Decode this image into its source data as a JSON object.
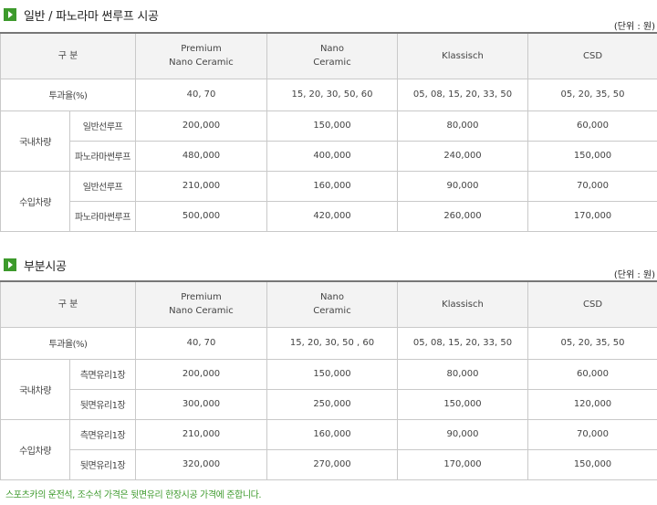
{
  "section1": {
    "title": "일반 / 파노라마 썬루프 시공",
    "unit": "(단위 : 원)",
    "header": {
      "division": "구 분",
      "premium_line1": "Premium",
      "premium_line2": "Nano Ceramic",
      "nano_line1": "Nano",
      "nano_line2": "Ceramic",
      "klassisch": "Klassisch",
      "csd": "CSD"
    },
    "transmittance": {
      "label": "투과율(%)",
      "premium": "40, 70",
      "nano": "15, 20, 30, 50, 60",
      "klassisch": "05, 08, 15, 20, 33, 50",
      "csd": "05, 20, 35, 50"
    },
    "domestic": {
      "label": "국내차량",
      "rows": [
        {
          "name": "일반선루프",
          "premium": "200,000",
          "nano": "150,000",
          "klassisch": "80,000",
          "csd": "60,000"
        },
        {
          "name": "파노라마썬루프",
          "premium": "480,000",
          "nano": "400,000",
          "klassisch": "240,000",
          "csd": "150,000"
        }
      ]
    },
    "imported": {
      "label": "수입차량",
      "rows": [
        {
          "name": "일반선루프",
          "premium": "210,000",
          "nano": "160,000",
          "klassisch": "90,000",
          "csd": "70,000"
        },
        {
          "name": "파노라마썬루프",
          "premium": "500,000",
          "nano": "420,000",
          "klassisch": "260,000",
          "csd": "170,000"
        }
      ]
    }
  },
  "section2": {
    "title": "부분시공",
    "unit": "(단위 : 원)",
    "header": {
      "division": "구 분",
      "premium_line1": "Premium",
      "premium_line2": "Nano Ceramic",
      "nano_line1": "Nano",
      "nano_line2": "Ceramic",
      "klassisch": "Klassisch",
      "csd": "CSD"
    },
    "transmittance": {
      "label": "투과율(%)",
      "premium": "40, 70",
      "nano": "15, 20, 30, 50 , 60",
      "klassisch": "05, 08, 15, 20, 33, 50",
      "csd": "05, 20, 35, 50"
    },
    "domestic": {
      "label": "국내차량",
      "rows": [
        {
          "name": "측면유리1장",
          "premium": "200,000",
          "nano": "150,000",
          "klassisch": "80,000",
          "csd": "60,000"
        },
        {
          "name": "뒷면유리1장",
          "premium": "300,000",
          "nano": "250,000",
          "klassisch": "150,000",
          "csd": "120,000"
        }
      ]
    },
    "imported": {
      "label": "수입차량",
      "rows": [
        {
          "name": "측면유리1장",
          "premium": "210,000",
          "nano": "160,000",
          "klassisch": "90,000",
          "csd": "70,000"
        },
        {
          "name": "뒷면유리1장",
          "premium": "320,000",
          "nano": "270,000",
          "klassisch": "170,000",
          "csd": "150,000"
        }
      ]
    }
  },
  "footnote": "스포츠카의 운전석, 조수석 가격은 뒷면유리 한장시공 가격에 준합니다.",
  "colors": {
    "accent": "#3d9a2c",
    "header_bg": "#f3f3f3",
    "border": "#c9c9c9"
  }
}
